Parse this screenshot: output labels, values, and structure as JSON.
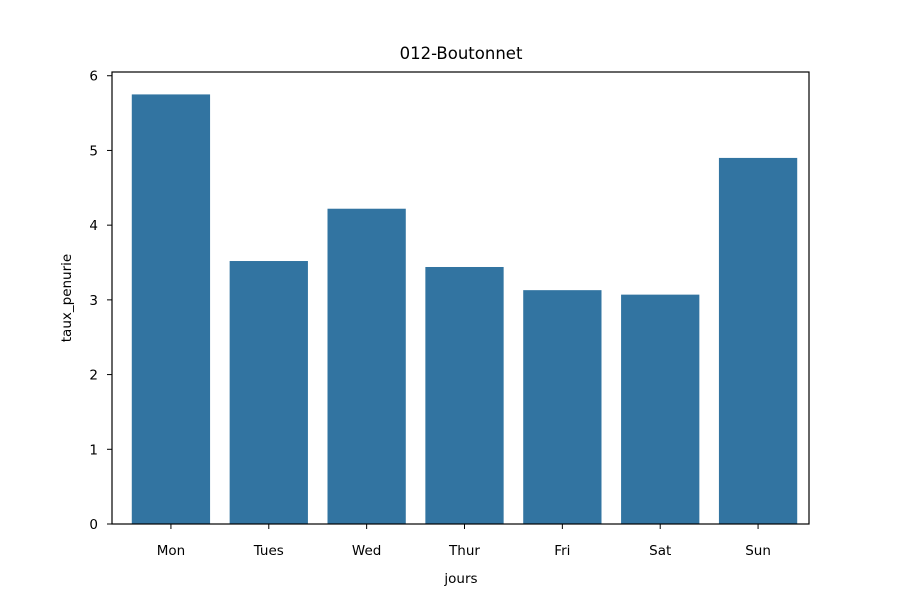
{
  "chart_data": {
    "type": "bar",
    "title": "012-Boutonnet",
    "xlabel": "jours",
    "ylabel": "taux_penurie",
    "categories": [
      "Mon",
      "Tues",
      "Wed",
      "Thur",
      "Fri",
      "Sat",
      "Sun"
    ],
    "values": [
      5.75,
      3.52,
      4.22,
      3.44,
      3.13,
      3.07,
      4.9
    ],
    "ylim": [
      0,
      6.05
    ],
    "yticks": [
      0,
      1,
      2,
      3,
      4,
      5,
      6
    ],
    "ytick_labels": [
      "0",
      "1",
      "2",
      "3",
      "4",
      "5",
      "6"
    ],
    "grid": false,
    "bar_color": "#3274a1"
  }
}
